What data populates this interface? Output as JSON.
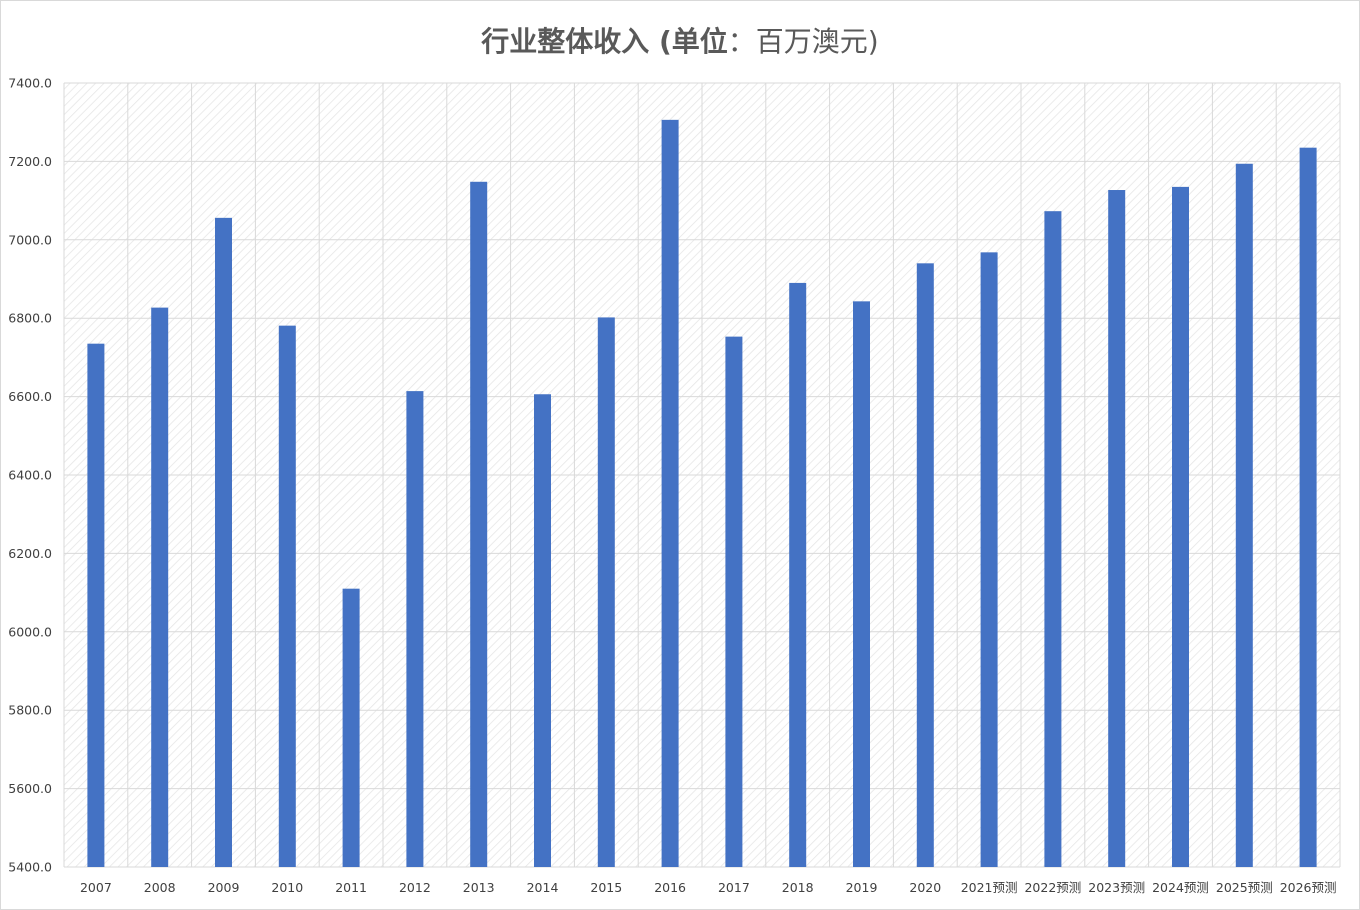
{
  "chart_data": {
    "type": "bar",
    "title_parts": {
      "bold": "行业整体收入 (单位",
      "light": "：百万澳元)"
    },
    "categories": [
      "2007",
      "2008",
      "2009",
      "2010",
      "2011",
      "2012",
      "2013",
      "2014",
      "2015",
      "2016",
      "2017",
      "2018",
      "2019",
      "2020",
      "2021预测",
      "2022预测",
      "2023预测",
      "2024预测",
      "2025预测",
      "2026预测"
    ],
    "values": [
      6735,
      6827,
      7056,
      6781,
      6110,
      6614,
      7148,
      6606,
      6802,
      7306,
      6753,
      6890,
      6843,
      6940,
      6968,
      7073,
      7127,
      7135,
      7194,
      7235
    ],
    "yticks": [
      "5400.0",
      "5600.0",
      "5800.0",
      "6000.0",
      "6200.0",
      "6400.0",
      "6600.0",
      "6800.0",
      "7000.0",
      "7200.0",
      "7400.0"
    ],
    "ylim": [
      5400,
      7400
    ],
    "grid": true,
    "legend": "none",
    "colors": {
      "bar": "#4472c4",
      "grid": "#d9d9d9",
      "hatch": "#e8e8e8",
      "title": "#595959"
    }
  }
}
